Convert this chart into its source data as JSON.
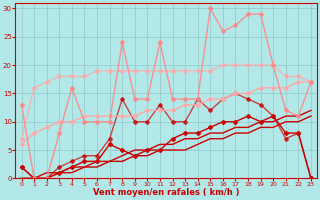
{
  "background_color": "#b2e8e8",
  "grid_color": "#aadddd",
  "xlabel": "Vent moyen/en rafales ( km/h )",
  "xlabel_color": "#cc0000",
  "tick_color": "#cc0000",
  "xlim": [
    -0.5,
    23.5
  ],
  "ylim": [
    0,
    31
  ],
  "yticks": [
    0,
    5,
    10,
    15,
    20,
    25,
    30
  ],
  "xticks": [
    0,
    1,
    2,
    3,
    4,
    5,
    6,
    7,
    8,
    9,
    10,
    11,
    12,
    13,
    14,
    15,
    16,
    17,
    18,
    19,
    20,
    21,
    22,
    23
  ],
  "series": [
    {
      "x": [
        0,
        1,
        2,
        3,
        4,
        5,
        6,
        7,
        8,
        9,
        10,
        11,
        12,
        13,
        14,
        15,
        16,
        17,
        18,
        19,
        20,
        21,
        22,
        23
      ],
      "y": [
        0,
        0,
        0,
        1,
        1,
        2,
        2,
        3,
        3,
        4,
        4,
        5,
        5,
        5,
        6,
        7,
        7,
        8,
        8,
        9,
        9,
        10,
        10,
        11
      ],
      "color": "#cc0000",
      "alpha": 1.0,
      "lw": 1.0,
      "marker": null,
      "ms": 0
    },
    {
      "x": [
        0,
        1,
        2,
        3,
        4,
        5,
        6,
        7,
        8,
        9,
        10,
        11,
        12,
        13,
        14,
        15,
        16,
        17,
        18,
        19,
        20,
        21,
        22,
        23
      ],
      "y": [
        0,
        0,
        1,
        1,
        2,
        2,
        3,
        3,
        4,
        5,
        5,
        6,
        6,
        7,
        7,
        8,
        8,
        9,
        9,
        10,
        10,
        11,
        11,
        12
      ],
      "color": "#cc0000",
      "alpha": 1.0,
      "lw": 1.0,
      "marker": null,
      "ms": 0
    },
    {
      "x": [
        0,
        1,
        2,
        3,
        4,
        5,
        6,
        7,
        8,
        9,
        10,
        11,
        12,
        13,
        14,
        15,
        16,
        17,
        18,
        19,
        20,
        21,
        22,
        23
      ],
      "y": [
        2,
        0,
        0,
        1,
        2,
        3,
        3,
        6,
        5,
        4,
        5,
        5,
        7,
        8,
        8,
        9,
        10,
        10,
        11,
        10,
        11,
        8,
        8,
        0
      ],
      "color": "#cc0000",
      "alpha": 1.0,
      "lw": 1.0,
      "marker": "D",
      "ms": 2.0
    },
    {
      "x": [
        0,
        1,
        2,
        3,
        4,
        5,
        6,
        7,
        8,
        9,
        10,
        11,
        12,
        13,
        14,
        15,
        16,
        17,
        18,
        19,
        20,
        21,
        22,
        23
      ],
      "y": [
        2,
        0,
        0,
        2,
        3,
        4,
        4,
        7,
        14,
        10,
        10,
        13,
        10,
        10,
        14,
        12,
        14,
        15,
        14,
        13,
        11,
        7,
        8,
        0
      ],
      "color": "#cc0000",
      "alpha": 0.7,
      "lw": 1.0,
      "marker": "D",
      "ms": 2.0
    },
    {
      "x": [
        0,
        1,
        2,
        3,
        4,
        5,
        6,
        7,
        8,
        9,
        10,
        11,
        12,
        13,
        14,
        15,
        16,
        17,
        18,
        19,
        20,
        21,
        22,
        23
      ],
      "y": [
        6,
        8,
        9,
        10,
        10,
        11,
        11,
        11,
        11,
        11,
        12,
        12,
        12,
        13,
        13,
        14,
        14,
        15,
        15,
        16,
        16,
        16,
        17,
        17
      ],
      "color": "#ffaaaa",
      "alpha": 1.0,
      "lw": 1.0,
      "marker": "D",
      "ms": 2.0
    },
    {
      "x": [
        0,
        1,
        2,
        3,
        4,
        5,
        6,
        7,
        8,
        9,
        10,
        11,
        12,
        13,
        14,
        15,
        16,
        17,
        18,
        19,
        20,
        21,
        22,
        23
      ],
      "y": [
        7,
        16,
        17,
        18,
        18,
        18,
        19,
        19,
        19,
        19,
        19,
        19,
        19,
        19,
        19,
        19,
        20,
        20,
        20,
        20,
        20,
        18,
        18,
        17
      ],
      "color": "#ffaaaa",
      "alpha": 0.8,
      "lw": 1.0,
      "marker": "D",
      "ms": 2.0
    },
    {
      "x": [
        0,
        1,
        2,
        3,
        4,
        5,
        6,
        7,
        8,
        9,
        10,
        11,
        12,
        13,
        14,
        15,
        16,
        17,
        18,
        19,
        20,
        21,
        22,
        23
      ],
      "y": [
        13,
        0,
        0,
        8,
        16,
        10,
        10,
        10,
        24,
        14,
        14,
        24,
        14,
        14,
        14,
        30,
        26,
        27,
        29,
        29,
        20,
        12,
        11,
        17
      ],
      "color": "#ff8888",
      "alpha": 0.9,
      "lw": 1.0,
      "marker": "D",
      "ms": 2.0
    }
  ]
}
